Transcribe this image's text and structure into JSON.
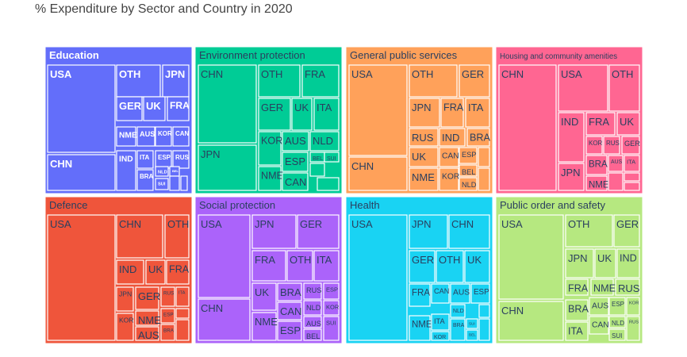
{
  "chart_data": {
    "type": "treemap",
    "title": "% Expenditure by Sector and Country in 2020",
    "sectors": [
      {
        "name": "Education",
        "color": "#636EFA",
        "label_color": "#ffffff",
        "label_weight": "bold",
        "leaf_text_color": "#ffffff",
        "leaves": [
          "USA",
          "CHN",
          "OTH",
          "JPN",
          "GER",
          "UK",
          "FRA",
          "NME",
          "AUS",
          "KOR",
          "CAN",
          "ITA",
          "ESP",
          "RUS",
          "IND",
          "BRA",
          "NLD",
          "SUI",
          "BEL",
          "",
          ""
        ]
      },
      {
        "name": "Environment protection",
        "color": "#00CC96",
        "label_color": "#2a3f5f",
        "label_weight": "normal",
        "leaf_text_color": "#2a3f5f",
        "leaves": [
          "CHN",
          "JPN",
          "OTH",
          "FRA",
          "GER",
          "UK",
          "ITA",
          "KOR",
          "AUS",
          "NLD",
          "NME",
          "ESP",
          "CAN",
          "BEL",
          "SUI",
          "",
          ""
        ]
      },
      {
        "name": "General public services",
        "color": "#FFA15A",
        "label_color": "#2a3f5f",
        "label_weight": "normal",
        "leaf_text_color": "#2a3f5f",
        "leaves": [
          "USA",
          "CHN",
          "OTH",
          "GER",
          "JPN",
          "FRA",
          "ITA",
          "RUS",
          "IND",
          "BRA",
          "UK",
          "CAN",
          "ESP",
          "NME",
          "KOR",
          "BEL",
          "NLD",
          "",
          ""
        ]
      },
      {
        "name": "Housing and community amenities",
        "color": "#FF6692",
        "label_color": "#2a3f5f",
        "label_weight": "normal",
        "leaf_text_color": "#2a3f5f",
        "leaves": [
          "CHN",
          "USA",
          "OTH",
          "IND",
          "FRA",
          "UK",
          "KOR",
          "RUS",
          "GER",
          "JPN",
          "BRA",
          "AUS",
          "ITA",
          "NME",
          "",
          "",
          ""
        ]
      },
      {
        "name": "Defence",
        "color": "#EF553B",
        "label_color": "#2a3f5f",
        "label_weight": "normal",
        "leaf_text_color": "#2a3f5f",
        "leaves": [
          "USA",
          "CHN",
          "OTH",
          "IND",
          "UK",
          "FRA",
          "JPN",
          "GER",
          "RUS",
          "ITA",
          "KOR",
          "NME",
          "ESP",
          "BRA",
          "AUS",
          "",
          ""
        ]
      },
      {
        "name": "Social protection",
        "color": "#AB63FA",
        "label_color": "#2a3f5f",
        "label_weight": "normal",
        "leaf_text_color": "#2a3f5f",
        "leaves": [
          "USA",
          "CHN",
          "JPN",
          "GER",
          "FRA",
          "OTH",
          "ITA",
          "UK",
          "BRA",
          "RUS",
          "ESP",
          "CAN",
          "NLD",
          "KOR",
          "NME",
          "ESP",
          "AUS",
          "BEL",
          "SUI"
        ]
      },
      {
        "name": "Health",
        "color": "#19D3F3",
        "label_color": "#2a3f5f",
        "label_weight": "normal",
        "leaf_text_color": "#2a3f5f",
        "leaves": [
          "USA",
          "JPN",
          "CHN",
          "GER",
          "OTH",
          "UK",
          "FRA",
          "CAN",
          "AUS",
          "ESP",
          "NME",
          "ITA",
          "KOR",
          "NLD",
          "BRA",
          "SUI",
          "BEL",
          "",
          ""
        ]
      },
      {
        "name": "Public order and safety",
        "color": "#B6E880",
        "label_color": "#2a3f5f",
        "label_weight": "normal",
        "leaf_text_color": "#2a3f5f",
        "leaves": [
          "USA",
          "CHN",
          "OTH",
          "GER",
          "JPN",
          "UK",
          "IND",
          "FRA",
          "NME",
          "RUS",
          "BRA",
          "AUS",
          "ESP",
          "KOR",
          "ITA",
          "CAN",
          "NLD",
          "SUI",
          "RUS"
        ]
      }
    ]
  }
}
